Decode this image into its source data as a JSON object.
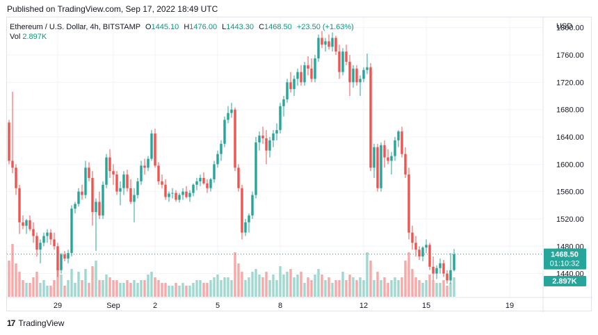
{
  "header": {
    "published": "Published on TradingView.com, Sep 17, 2022 18:49 UTC"
  },
  "legend": {
    "symbol": "Ethereum / U.S. Dollar, 4h, BITSTAMP",
    "open_label": "O",
    "open_value": "1445.10",
    "high_label": "H",
    "high_value": "1476.00",
    "low_label": "L",
    "low_value": "1443.30",
    "close_label": "C",
    "close_value": "1468.50",
    "change": "+23.50 (+1.63%)",
    "vol_label": "Vol",
    "vol_value": "2.897K"
  },
  "price_axis": {
    "currency": "USD",
    "price_badge": "1468.50",
    "countdown_badge": "01:10:32",
    "volume_badge": "2.897K"
  },
  "footer": {
    "brand": "TradingView",
    "logo_text": "17"
  },
  "colors": {
    "up": "#26a69a",
    "down": "#ef5350",
    "up_vol": "#9ed8d0",
    "down_vol": "#f7a9a7",
    "grid": "#f0f3fa",
    "badge": "#26a69a"
  },
  "chart_data": {
    "type": "candlestick",
    "y_ticks": [
      "1440.00",
      "1480.00",
      "1520.00",
      "1560.00",
      "1600.00",
      "1640.00",
      "1680.00",
      "1720.00",
      "1760.00",
      "1800.00"
    ],
    "ylim": [
      1405,
      1815
    ],
    "x_ticks": [
      {
        "label": "29",
        "index": 14
      },
      {
        "label": "Sep",
        "index": 30
      },
      {
        "label": "2",
        "index": 42
      },
      {
        "label": "5",
        "index": 60
      },
      {
        "label": "8",
        "index": 78
      },
      {
        "label": "12",
        "index": 102
      },
      {
        "label": "15",
        "index": 120
      },
      {
        "label": "19",
        "index": 144
      }
    ],
    "last_price": 1468.5,
    "candles": [
      [
        1661,
        1665,
        1600,
        1605,
        1.3
      ],
      [
        1605,
        1706,
        1587,
        1595,
        1.9
      ],
      [
        1595,
        1600,
        1555,
        1565,
        1.2
      ],
      [
        1565,
        1570,
        1498,
        1515,
        0.9
      ],
      [
        1515,
        1525,
        1505,
        1510,
        0.6
      ],
      [
        1510,
        1520,
        1498,
        1518,
        0.5
      ],
      [
        1518,
        1525,
        1502,
        1505,
        0.5
      ],
      [
        1505,
        1515,
        1485,
        1495,
        0.7
      ],
      [
        1495,
        1500,
        1465,
        1475,
        0.9
      ],
      [
        1475,
        1490,
        1455,
        1485,
        0.5
      ],
      [
        1485,
        1500,
        1480,
        1495,
        0.6
      ],
      [
        1495,
        1505,
        1485,
        1500,
        0.4
      ],
      [
        1500,
        1505,
        1482,
        1490,
        0.4
      ],
      [
        1490,
        1500,
        1475,
        1480,
        0.6
      ],
      [
        1480,
        1485,
        1435,
        1445,
        1.0
      ],
      [
        1445,
        1470,
        1440,
        1468,
        0.8
      ],
      [
        1468,
        1473,
        1458,
        1462,
        0.4
      ],
      [
        1462,
        1475,
        1455,
        1470,
        0.6
      ],
      [
        1470,
        1540,
        1465,
        1535,
        1.0
      ],
      [
        1535,
        1545,
        1528,
        1542,
        0.5
      ],
      [
        1542,
        1565,
        1538,
        1560,
        0.9
      ],
      [
        1560,
        1570,
        1548,
        1555,
        0.6
      ],
      [
        1555,
        1605,
        1550,
        1595,
        1.0
      ],
      [
        1595,
        1603,
        1575,
        1580,
        0.5
      ],
      [
        1580,
        1590,
        1510,
        1530,
        1.1
      ],
      [
        1530,
        1550,
        1473,
        1545,
        1.3
      ],
      [
        1545,
        1560,
        1520,
        1525,
        0.6
      ],
      [
        1525,
        1575,
        1520,
        1570,
        0.6
      ],
      [
        1570,
        1615,
        1565,
        1610,
        0.8
      ],
      [
        1610,
        1622,
        1580,
        1590,
        0.7
      ],
      [
        1590,
        1600,
        1570,
        1585,
        0.6
      ],
      [
        1585,
        1590,
        1555,
        1560,
        0.6
      ],
      [
        1560,
        1575,
        1540,
        1565,
        0.5
      ],
      [
        1565,
        1590,
        1555,
        1585,
        0.5
      ],
      [
        1585,
        1592,
        1560,
        1565,
        0.6
      ],
      [
        1565,
        1578,
        1542,
        1545,
        0.5
      ],
      [
        1545,
        1565,
        1515,
        1555,
        0.6
      ],
      [
        1555,
        1580,
        1550,
        1575,
        0.5
      ],
      [
        1575,
        1605,
        1570,
        1598,
        0.6
      ],
      [
        1598,
        1608,
        1585,
        1595,
        0.6
      ],
      [
        1595,
        1612,
        1590,
        1608,
        0.8
      ],
      [
        1608,
        1650,
        1605,
        1645,
        0.9
      ],
      [
        1645,
        1652,
        1595,
        1598,
        0.7
      ],
      [
        1598,
        1603,
        1570,
        1575,
        0.6
      ],
      [
        1575,
        1585,
        1565,
        1570,
        0.5
      ],
      [
        1570,
        1578,
        1548,
        1552,
        0.5
      ],
      [
        1552,
        1560,
        1545,
        1557,
        0.4
      ],
      [
        1557,
        1565,
        1550,
        1558,
        0.4
      ],
      [
        1558,
        1562,
        1545,
        1548,
        0.5
      ],
      [
        1548,
        1558,
        1544,
        1555,
        0.4
      ],
      [
        1555,
        1565,
        1548,
        1560,
        0.5
      ],
      [
        1560,
        1568,
        1550,
        1552,
        0.4
      ],
      [
        1552,
        1562,
        1545,
        1558,
        0.4
      ],
      [
        1558,
        1572,
        1553,
        1570,
        0.5
      ],
      [
        1570,
        1580,
        1562,
        1575,
        0.6
      ],
      [
        1575,
        1585,
        1568,
        1580,
        0.6
      ],
      [
        1580,
        1588,
        1570,
        1572,
        0.5
      ],
      [
        1572,
        1578,
        1558,
        1565,
        0.5
      ],
      [
        1565,
        1580,
        1560,
        1578,
        0.6
      ],
      [
        1578,
        1605,
        1573,
        1600,
        0.7
      ],
      [
        1600,
        1620,
        1595,
        1615,
        0.8
      ],
      [
        1615,
        1635,
        1605,
        1630,
        0.6
      ],
      [
        1630,
        1670,
        1625,
        1665,
        0.7
      ],
      [
        1665,
        1685,
        1660,
        1675,
        0.7
      ],
      [
        1675,
        1690,
        1668,
        1680,
        0.6
      ],
      [
        1680,
        1683,
        1590,
        1595,
        1.6
      ],
      [
        1595,
        1600,
        1560,
        1565,
        1.2
      ],
      [
        1565,
        1570,
        1490,
        1500,
        0.9
      ],
      [
        1500,
        1520,
        1495,
        1515,
        0.6
      ],
      [
        1515,
        1528,
        1500,
        1525,
        0.7
      ],
      [
        1525,
        1560,
        1520,
        1555,
        0.9
      ],
      [
        1555,
        1640,
        1550,
        1632,
        1.0
      ],
      [
        1632,
        1648,
        1620,
        1642,
        0.8
      ],
      [
        1642,
        1655,
        1630,
        1638,
        0.7
      ],
      [
        1638,
        1650,
        1600,
        1620,
        0.9
      ],
      [
        1620,
        1640,
        1610,
        1635,
        0.6
      ],
      [
        1635,
        1650,
        1625,
        1645,
        0.8
      ],
      [
        1645,
        1660,
        1635,
        1650,
        0.6
      ],
      [
        1650,
        1690,
        1645,
        1685,
        1.1
      ],
      [
        1685,
        1700,
        1670,
        1695,
        0.8
      ],
      [
        1695,
        1725,
        1690,
        1720,
        0.9
      ],
      [
        1720,
        1735,
        1705,
        1710,
        1.0
      ],
      [
        1710,
        1730,
        1700,
        1725,
        0.7
      ],
      [
        1725,
        1740,
        1715,
        1735,
        0.8
      ],
      [
        1735,
        1745,
        1715,
        1720,
        0.9
      ],
      [
        1720,
        1750,
        1715,
        1745,
        0.5
      ],
      [
        1745,
        1758,
        1730,
        1740,
        0.7
      ],
      [
        1740,
        1755,
        1720,
        1725,
        0.6
      ],
      [
        1725,
        1760,
        1720,
        1755,
        0.8
      ],
      [
        1755,
        1790,
        1750,
        1785,
        1.0
      ],
      [
        1785,
        1795,
        1770,
        1775,
        0.8
      ],
      [
        1775,
        1785,
        1765,
        1780,
        0.6
      ],
      [
        1780,
        1790,
        1768,
        1772,
        0.7
      ],
      [
        1772,
        1793,
        1765,
        1785,
        0.5
      ],
      [
        1785,
        1788,
        1760,
        1765,
        0.6
      ],
      [
        1765,
        1775,
        1725,
        1735,
        0.6
      ],
      [
        1735,
        1770,
        1730,
        1765,
        0.9
      ],
      [
        1765,
        1775,
        1745,
        1750,
        0.6
      ],
      [
        1750,
        1760,
        1700,
        1720,
        0.8
      ],
      [
        1720,
        1745,
        1712,
        1740,
        0.7
      ],
      [
        1740,
        1745,
        1715,
        1720,
        0.6
      ],
      [
        1720,
        1730,
        1700,
        1725,
        0.7
      ],
      [
        1725,
        1742,
        1720,
        1738,
        0.6
      ],
      [
        1738,
        1762,
        1732,
        1742,
        1.6
      ],
      [
        1742,
        1748,
        1590,
        1595,
        1.3
      ],
      [
        1595,
        1630,
        1580,
        1625,
        0.6
      ],
      [
        1625,
        1630,
        1560,
        1565,
        0.9
      ],
      [
        1565,
        1632,
        1560,
        1628,
        0.6
      ],
      [
        1628,
        1635,
        1595,
        1610,
        0.7
      ],
      [
        1610,
        1622,
        1600,
        1605,
        0.5
      ],
      [
        1605,
        1618,
        1585,
        1612,
        0.6
      ],
      [
        1612,
        1640,
        1605,
        1635,
        0.7
      ],
      [
        1635,
        1650,
        1625,
        1648,
        0.6
      ],
      [
        1648,
        1655,
        1610,
        1615,
        0.7
      ],
      [
        1615,
        1625,
        1580,
        1585,
        1.3
      ],
      [
        1585,
        1595,
        1490,
        1500,
        1.6
      ],
      [
        1500,
        1510,
        1475,
        1485,
        1.0
      ],
      [
        1485,
        1495,
        1465,
        1475,
        0.7
      ],
      [
        1475,
        1480,
        1460,
        1465,
        0.6
      ],
      [
        1465,
        1480,
        1458,
        1478,
        0.5
      ],
      [
        1478,
        1490,
        1470,
        1482,
        0.6
      ],
      [
        1482,
        1485,
        1445,
        1450,
        0.8
      ],
      [
        1450,
        1465,
        1430,
        1440,
        0.6
      ],
      [
        1440,
        1452,
        1432,
        1448,
        0.5
      ],
      [
        1448,
        1462,
        1440,
        1455,
        0.5
      ],
      [
        1455,
        1460,
        1435,
        1440,
        0.6
      ],
      [
        1440,
        1445,
        1425,
        1430,
        0.4
      ],
      [
        1430,
        1470,
        1425,
        1445,
        0.5
      ],
      [
        1445,
        1476,
        1443,
        1468.5,
        0.7
      ]
    ]
  }
}
